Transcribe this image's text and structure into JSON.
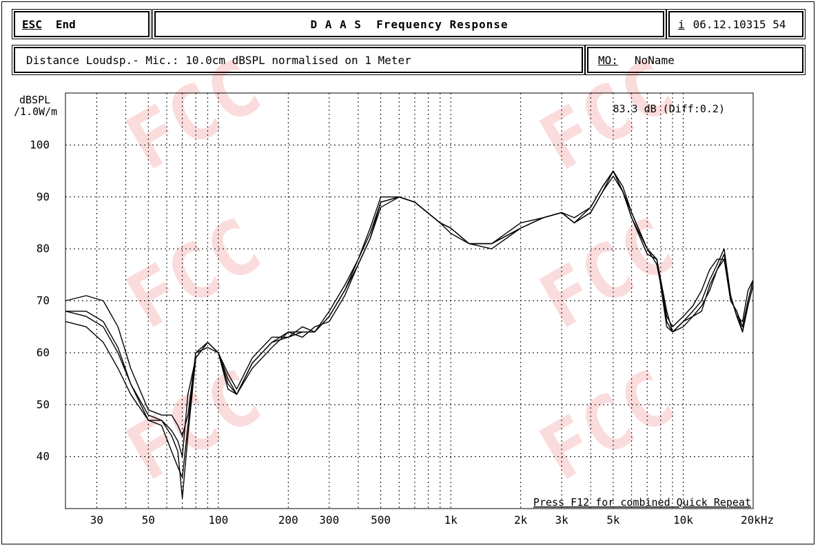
{
  "header": {
    "esc_label": "ESC",
    "end_label": "End",
    "title": "D A A S  Frequency Response",
    "info_icon": "i",
    "info_text": "06.12.10315 54",
    "distance_text": "Distance Loudsp.- Mic.: 10.0cm dBSPL normalised on 1 Meter",
    "mo_label": "MO:",
    "mo_value": "NoName"
  },
  "chart_data": {
    "type": "line",
    "xscale": "log",
    "xlim": [
      22,
      20000
    ],
    "ylim": [
      30,
      110
    ],
    "ylabel_line1": "dBSPL",
    "ylabel_line2": "/1.0W/m",
    "ytick_labels": [
      "100",
      "90",
      "80",
      "70",
      "60",
      "50",
      "40"
    ],
    "yticks": [
      100,
      90,
      80,
      70,
      60,
      50,
      40
    ],
    "xticks": [
      {
        "value": 30,
        "label": "30"
      },
      {
        "value": 50,
        "label": "50"
      },
      {
        "value": 100,
        "label": "100"
      },
      {
        "value": 200,
        "label": "200"
      },
      {
        "value": 300,
        "label": "300"
      },
      {
        "value": 500,
        "label": "500"
      },
      {
        "value": 1000,
        "label": "1k"
      },
      {
        "value": 2000,
        "label": "2k"
      },
      {
        "value": 3000,
        "label": "3k"
      },
      {
        "value": 5000,
        "label": "5k"
      },
      {
        "value": 10000,
        "label": "10k"
      },
      {
        "value": 20000,
        "label": "20kHz"
      }
    ],
    "annotation": "83.3 dB (Diff:0.2)",
    "footer_note": "Press F12 for combined Quick Repeat",
    "grid": true,
    "line_color": "#000000",
    "series": [
      {
        "x": [
          22,
          27,
          32,
          37,
          42,
          50,
          57,
          63,
          67,
          70,
          74,
          80,
          90,
          100,
          110,
          120,
          140,
          170,
          200,
          230,
          260,
          300,
          350,
          400,
          450,
          500,
          600,
          700,
          900,
          1000,
          1200,
          1500,
          2000,
          2500,
          3000,
          3400,
          4000,
          4500,
          5000,
          5500,
          6000,
          7000,
          7700,
          8500,
          9000,
          10000,
          11000,
          12000,
          13000,
          14000,
          15000,
          16000,
          17000,
          18000,
          19000,
          20000
        ],
        "y": [
          68,
          68,
          66,
          61,
          54,
          47,
          47,
          45,
          43,
          40,
          52,
          59,
          62,
          60,
          55,
          52,
          58,
          62,
          64,
          64,
          64,
          68,
          73,
          78,
          83,
          89,
          90,
          89,
          85,
          83,
          81,
          81,
          85,
          86,
          87,
          86,
          88,
          92,
          95,
          91,
          87,
          80,
          78,
          68,
          64,
          66,
          67,
          68,
          73,
          76,
          78,
          70,
          68,
          65,
          70,
          74
        ]
      },
      {
        "x": [
          22,
          27,
          32,
          37,
          42,
          50,
          57,
          63,
          67,
          70,
          74,
          80,
          90,
          100,
          110,
          120,
          140,
          170,
          200,
          230,
          260,
          300,
          350,
          400,
          450,
          500,
          600,
          700,
          900,
          1000,
          1200,
          1500,
          2000,
          2500,
          3000,
          3400,
          4000,
          4500,
          5000,
          5500,
          6000,
          7000,
          7700,
          8500,
          9000,
          10000,
          11000,
          12000,
          13000,
          14000,
          15000,
          16000,
          17000,
          18000,
          19000,
          20000
        ],
        "y": [
          70,
          71,
          70,
          65,
          57,
          49,
          48,
          48,
          46,
          44,
          48,
          60,
          62,
          60,
          56,
          53,
          59,
          63,
          63,
          65,
          64,
          67,
          72,
          78,
          84,
          90,
          90,
          89,
          85,
          84,
          81,
          81,
          84,
          86,
          87,
          85,
          88,
          92,
          95,
          92,
          87,
          80,
          77,
          67,
          65,
          67,
          69,
          72,
          76,
          78,
          78,
          71,
          67,
          66,
          72,
          74
        ]
      },
      {
        "x": [
          22,
          27,
          32,
          37,
          42,
          50,
          57,
          63,
          67,
          70,
          74,
          80,
          90,
          100,
          110,
          120,
          140,
          170,
          200,
          230,
          260,
          300,
          350,
          400,
          450,
          500,
          600,
          700,
          900,
          1000,
          1200,
          1500,
          2000,
          2500,
          3000,
          3400,
          4000,
          4500,
          5000,
          5500,
          6000,
          7000,
          7700,
          8500,
          9000,
          10000,
          11000,
          12000,
          13000,
          14000,
          15000,
          16000,
          17000,
          18000,
          19000,
          20000
        ],
        "y": [
          66,
          65,
          62,
          57,
          52,
          47,
          46,
          41,
          38,
          36,
          46,
          60,
          61,
          60,
          53,
          52,
          57,
          61,
          64,
          63,
          65,
          66,
          71,
          77,
          82,
          88,
          90,
          89,
          85,
          84,
          81,
          80,
          84,
          86,
          87,
          85,
          87,
          91,
          94,
          91,
          86,
          80,
          78,
          66,
          64,
          65,
          67,
          69,
          72,
          76,
          79,
          70,
          68,
          64,
          69,
          73
        ]
      },
      {
        "x": [
          22,
          27,
          32,
          37,
          42,
          50,
          57,
          63,
          67,
          70,
          74,
          80,
          90,
          100,
          110,
          120,
          140,
          170,
          200,
          230,
          260,
          300,
          350,
          400,
          450,
          500,
          600,
          700,
          900,
          1000,
          1200,
          1500,
          2000,
          2500,
          3000,
          3400,
          4000,
          4500,
          5000,
          5500,
          6000,
          7000,
          7700,
          8500,
          9000,
          10000,
          11000,
          12000,
          13000,
          14000,
          15000,
          16000,
          17000,
          18000,
          19000,
          20000
        ],
        "y": [
          68,
          67,
          65,
          60,
          54,
          48,
          47,
          44,
          41,
          32,
          44,
          59,
          62,
          60,
          54,
          52,
          58,
          62,
          63,
          64,
          64,
          67,
          72,
          77,
          82,
          89,
          90,
          89,
          85,
          84,
          81,
          81,
          84,
          86,
          87,
          85,
          87,
          91,
          95,
          91,
          86,
          79,
          78,
          65,
          64,
          66,
          68,
          70,
          74,
          77,
          80,
          71,
          67,
          64,
          70,
          74
        ]
      }
    ]
  }
}
